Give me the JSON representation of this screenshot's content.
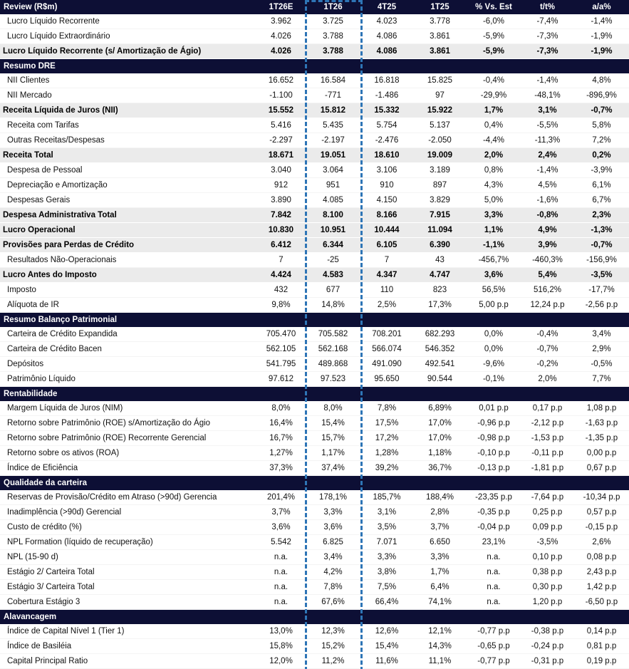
{
  "colors": {
    "navy": "#0d0f35",
    "total_bg": "#ebebeb",
    "highlight": "#2e75b6",
    "body_text": "#111111"
  },
  "table": {
    "highlighted_column": "1T26",
    "columns": [
      "Review (R$m)",
      "1T26E",
      "1T26",
      "4T25",
      "1T25",
      "% Vs. Est",
      "t/t%",
      "a/a%"
    ],
    "rows": [
      {
        "kind": "item",
        "label": "Lucro Líquido Recorrente",
        "values": [
          "3.962",
          "3.725",
          "4.023",
          "3.778",
          "-6,0%",
          "-7,4%",
          "-1,4%"
        ]
      },
      {
        "kind": "item",
        "label": "Lucro Líquido Extraordinário",
        "values": [
          "4.026",
          "3.788",
          "4.086",
          "3.861",
          "-5,9%",
          "-7,3%",
          "-1,9%"
        ]
      },
      {
        "kind": "total",
        "label": "Lucro Líquido Recorrente (s/ Amortização de Ágio)",
        "values": [
          "4.026",
          "3.788",
          "4.086",
          "3.861",
          "-5,9%",
          "-7,3%",
          "-1,9%"
        ]
      },
      {
        "kind": "section",
        "label": "Resumo DRE"
      },
      {
        "kind": "item",
        "label": "NII Clientes",
        "values": [
          "16.652",
          "16.584",
          "16.818",
          "15.825",
          "-0,4%",
          "-1,4%",
          "4,8%"
        ]
      },
      {
        "kind": "item",
        "label": "NII Mercado",
        "values": [
          "-1.100",
          "-771",
          "-1.486",
          "97",
          "-29,9%",
          "-48,1%",
          "-896,9%"
        ]
      },
      {
        "kind": "total",
        "label": "Receita Líquida de Juros (NII)",
        "values": [
          "15.552",
          "15.812",
          "15.332",
          "15.922",
          "1,7%",
          "3,1%",
          "-0,7%"
        ]
      },
      {
        "kind": "item",
        "label": "Receita com Tarifas",
        "values": [
          "5.416",
          "5.435",
          "5.754",
          "5.137",
          "0,4%",
          "-5,5%",
          "5,8%"
        ]
      },
      {
        "kind": "item",
        "label": "Outras Receitas/Despesas",
        "values": [
          "-2.297",
          "-2.197",
          "-2.476",
          "-2.050",
          "-4,4%",
          "-11,3%",
          "7,2%"
        ]
      },
      {
        "kind": "total",
        "label": "Receita Total",
        "values": [
          "18.671",
          "19.051",
          "18.610",
          "19.009",
          "2,0%",
          "2,4%",
          "0,2%"
        ]
      },
      {
        "kind": "item",
        "label": "Despesa de Pessoal",
        "values": [
          "3.040",
          "3.064",
          "3.106",
          "3.189",
          "0,8%",
          "-1,4%",
          "-3,9%"
        ]
      },
      {
        "kind": "item",
        "label": "Depreciação e Amortização",
        "values": [
          "912",
          "951",
          "910",
          "897",
          "4,3%",
          "4,5%",
          "6,1%"
        ]
      },
      {
        "kind": "item",
        "label": "Despesas Gerais",
        "values": [
          "3.890",
          "4.085",
          "4.150",
          "3.829",
          "5,0%",
          "-1,6%",
          "6,7%"
        ]
      },
      {
        "kind": "total",
        "label": "Despesa Administrativa Total",
        "values": [
          "7.842",
          "8.100",
          "8.166",
          "7.915",
          "3,3%",
          "-0,8%",
          "2,3%"
        ]
      },
      {
        "kind": "total",
        "label": "Lucro Operacional",
        "values": [
          "10.830",
          "10.951",
          "10.444",
          "11.094",
          "1,1%",
          "4,9%",
          "-1,3%"
        ]
      },
      {
        "kind": "total",
        "label": "Provisões para Perdas de Crédito",
        "values": [
          "6.412",
          "6.344",
          "6.105",
          "6.390",
          "-1,1%",
          "3,9%",
          "-0,7%"
        ]
      },
      {
        "kind": "item",
        "label": "Resultados Não-Operacionais",
        "values": [
          "7",
          "-25",
          "7",
          "43",
          "-456,7%",
          "-460,3%",
          "-156,9%"
        ]
      },
      {
        "kind": "total",
        "label": "Lucro Antes do Imposto",
        "values": [
          "4.424",
          "4.583",
          "4.347",
          "4.747",
          "3,6%",
          "5,4%",
          "-3,5%"
        ]
      },
      {
        "kind": "item",
        "label": "Imposto",
        "values": [
          "432",
          "677",
          "110",
          "823",
          "56,5%",
          "516,2%",
          "-17,7%"
        ]
      },
      {
        "kind": "item",
        "label": "Alíquota de IR",
        "values": [
          "9,8%",
          "14,8%",
          "2,5%",
          "17,3%",
          "5,00 p.p",
          "12,24 p.p",
          "-2,56 p.p"
        ]
      },
      {
        "kind": "section",
        "label": "Resumo Balanço Patrimonial"
      },
      {
        "kind": "item",
        "label": "Carteira de Crédito Expandida",
        "values": [
          "705.470",
          "705.582",
          "708.201",
          "682.293",
          "0,0%",
          "-0,4%",
          "3,4%"
        ]
      },
      {
        "kind": "item",
        "label": "Carteira de Crédito Bacen",
        "values": [
          "562.105",
          "562.168",
          "566.074",
          "546.352",
          "0,0%",
          "-0,7%",
          "2,9%"
        ]
      },
      {
        "kind": "item",
        "label": "Depósitos",
        "values": [
          "541.795",
          "489.868",
          "491.090",
          "492.541",
          "-9,6%",
          "-0,2%",
          "-0,5%"
        ]
      },
      {
        "kind": "item",
        "label": "Patrimônio Líquido",
        "values": [
          "97.612",
          "97.523",
          "95.650",
          "90.544",
          "-0,1%",
          "2,0%",
          "7,7%"
        ]
      },
      {
        "kind": "section",
        "label": "Rentabilidade"
      },
      {
        "kind": "item",
        "label": "Margem Líquida de Juros (NIM)",
        "values": [
          "8,0%",
          "8,0%",
          "7,8%",
          "6,89%",
          "0,01 p.p",
          "0,17 p.p",
          "1,08 p.p"
        ]
      },
      {
        "kind": "item",
        "label": "Retorno sobre Patrimônio (ROE) s/Amortização do Ágio",
        "values": [
          "16,4%",
          "15,4%",
          "17,5%",
          "17,0%",
          "-0,96 p.p",
          "-2,12 p.p",
          "-1,63 p.p"
        ]
      },
      {
        "kind": "item",
        "label": "Retorno sobre Patrimônio (ROE) Recorrente Gerencial",
        "values": [
          "16,7%",
          "15,7%",
          "17,2%",
          "17,0%",
          "-0,98 p.p",
          "-1,53 p.p",
          "-1,35 p.p"
        ]
      },
      {
        "kind": "item",
        "label": "Retorno sobre os ativos (ROA)",
        "values": [
          "1,27%",
          "1,17%",
          "1,28%",
          "1,18%",
          "-0,10 p.p",
          "-0,11 p.p",
          "0,00 p.p"
        ]
      },
      {
        "kind": "item",
        "label": "Índice de Eficiência",
        "values": [
          "37,3%",
          "37,4%",
          "39,2%",
          "36,7%",
          "-0,13 p.p",
          "-1,81 p.p",
          "0,67 p.p"
        ]
      },
      {
        "kind": "section",
        "label": "Qualidade da carteira"
      },
      {
        "kind": "item",
        "label": "Reservas de Provisão/Crédito em Atraso (>90d) Gerencia",
        "values": [
          "201,4%",
          "178,1%",
          "185,7%",
          "188,4%",
          "-23,35 p.p",
          "-7,64 p.p",
          "-10,34 p.p"
        ]
      },
      {
        "kind": "item",
        "label": "Inadimplência (>90d) Gerencial",
        "values": [
          "3,7%",
          "3,3%",
          "3,1%",
          "2,8%",
          "-0,35 p.p",
          "0,25 p.p",
          "0,57 p.p"
        ]
      },
      {
        "kind": "item",
        "label": "Custo de crédito (%)",
        "values": [
          "3,6%",
          "3,6%",
          "3,5%",
          "3,7%",
          "-0,04 p.p",
          "0,09 p.p",
          "-0,15 p.p"
        ]
      },
      {
        "kind": "item",
        "label": "NPL Formation (líquido de recuperação)",
        "values": [
          "5.542",
          "6.825",
          "7.071",
          "6.650",
          "23,1%",
          "-3,5%",
          "2,6%"
        ]
      },
      {
        "kind": "item",
        "label": "NPL (15-90 d)",
        "values": [
          "n.a.",
          "3,4%",
          "3,3%",
          "3,3%",
          "n.a.",
          "0,10 p.p",
          "0,08 p.p"
        ]
      },
      {
        "kind": "item",
        "label": "Estágio 2/ Carteira Total",
        "values": [
          "n.a.",
          "4,2%",
          "3,8%",
          "1,7%",
          "n.a.",
          "0,38 p.p",
          "2,43 p.p"
        ]
      },
      {
        "kind": "item",
        "label": "Estágio 3/ Carteira Total",
        "values": [
          "n.a.",
          "7,8%",
          "7,5%",
          "6,4%",
          "n.a.",
          "0,30 p.p",
          "1,42 p.p"
        ]
      },
      {
        "kind": "item",
        "label": "Cobertura Estágio 3",
        "values": [
          "n.a.",
          "67,6%",
          "66,4%",
          "74,1%",
          "n.a.",
          "1,20 p.p",
          "-6,50 p.p"
        ]
      },
      {
        "kind": "section",
        "label": "Alavancagem"
      },
      {
        "kind": "item",
        "label": "Índice de Capital Nível 1 (Tier 1)",
        "values": [
          "13,0%",
          "12,3%",
          "12,6%",
          "12,1%",
          "-0,77 p.p",
          "-0,38 p.p",
          "0,14 p.p"
        ]
      },
      {
        "kind": "item",
        "label": "Índice de Basiléia",
        "values": [
          "15,8%",
          "15,2%",
          "15,4%",
          "14,3%",
          "-0,65 p.p",
          "-0,24 p.p",
          "0,81 p.p"
        ]
      },
      {
        "kind": "item",
        "label": "Capital Principal Ratio",
        "values": [
          "12,0%",
          "11,2%",
          "11,6%",
          "11,1%",
          "-0,77 p.p",
          "-0,31 p.p",
          "0,19 p.p"
        ]
      }
    ]
  }
}
